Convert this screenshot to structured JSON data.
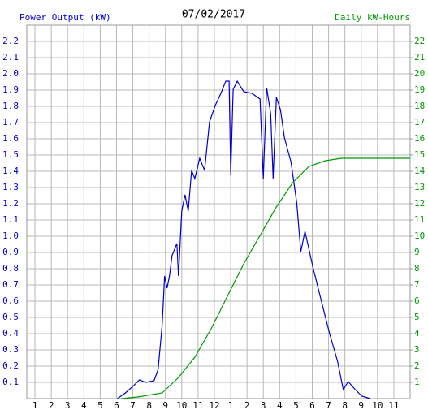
{
  "chart_data": {
    "type": "line",
    "title": "07/02/2017",
    "xlim": [
      0.5,
      24
    ],
    "xticks": [
      1,
      2,
      3,
      4,
      5,
      6,
      7,
      8,
      9,
      10,
      11,
      12,
      {
        "value": 13,
        "label": "1"
      },
      {
        "value": 14,
        "label": "2"
      },
      {
        "value": 15,
        "label": "3"
      },
      {
        "value": 16,
        "label": "4"
      },
      {
        "value": 17,
        "label": "5"
      },
      {
        "value": 18,
        "label": "6"
      },
      {
        "value": 19,
        "label": "7"
      },
      {
        "value": 20,
        "label": "8"
      },
      {
        "value": 21,
        "label": "9"
      },
      {
        "value": 22,
        "label": "10"
      },
      {
        "value": 23,
        "label": "11"
      }
    ],
    "ylim": [
      0,
      2.3
    ],
    "yticks": [
      0.1,
      0.2,
      0.3,
      0.4,
      0.5,
      0.6,
      0.7,
      0.8,
      0.9,
      {
        "value": 1,
        "label": "1.0"
      },
      1.1,
      1.2,
      1.3,
      1.4,
      1.5,
      1.6,
      1.7,
      1.8,
      1.9,
      {
        "value": 2,
        "label": "2.0"
      },
      2.1,
      2.2
    ],
    "y2lim": [
      0,
      23
    ],
    "y2ticks": [
      1,
      2,
      3,
      4,
      5,
      6,
      7,
      8,
      9,
      10,
      11,
      12,
      13,
      14,
      15,
      16,
      17,
      18,
      19,
      20,
      21,
      22
    ],
    "grid": true,
    "series": [
      {
        "name": "Power Output (kW)",
        "color": "#0000cc",
        "axis": "y",
        "x": [
          6.05,
          6.55,
          7.05,
          7.4,
          7.8,
          8.3,
          8.55,
          8.8,
          8.95,
          9.1,
          9.25,
          9.4,
          9.7,
          9.8,
          10.0,
          10.2,
          10.4,
          10.6,
          10.8,
          11.1,
          11.4,
          11.7,
          12.05,
          12.4,
          12.7,
          12.9,
          13.0,
          13.15,
          13.4,
          13.8,
          14.3,
          14.8,
          15.0,
          15.2,
          15.45,
          15.6,
          15.8,
          16.05,
          16.3,
          16.7,
          17.05,
          17.3,
          17.55,
          18.05,
          18.55,
          19.05,
          19.55,
          19.9,
          20.2,
          20.55,
          21.05,
          21.55
        ],
        "values": [
          0,
          0.035,
          0.08,
          0.115,
          0.1,
          0.11,
          0.18,
          0.455,
          0.755,
          0.68,
          0.755,
          0.88,
          0.955,
          0.755,
          1.155,
          1.255,
          1.155,
          1.405,
          1.355,
          1.48,
          1.405,
          1.705,
          1.805,
          1.88,
          1.955,
          1.955,
          1.38,
          1.905,
          1.955,
          1.89,
          1.88,
          1.845,
          1.355,
          1.915,
          1.755,
          1.355,
          1.855,
          1.78,
          1.605,
          1.455,
          1.205,
          0.905,
          1.03,
          0.805,
          0.605,
          0.405,
          0.23,
          0.055,
          0.105,
          0.065,
          0.015,
          0
        ]
      },
      {
        "name": "Daily kW-Hours",
        "color": "#009900",
        "axis": "y2",
        "x": [
          6.3,
          7.3,
          8.8,
          9.8,
          10.8,
          11.8,
          12.8,
          13.8,
          14.8,
          15.8,
          16.8,
          17.8,
          18.8,
          19.8,
          24
        ],
        "values": [
          0,
          0.1,
          0.35,
          1.3,
          2.55,
          4.3,
          6.3,
          8.3,
          10.05,
          11.8,
          13.3,
          14.3,
          14.65,
          14.8,
          14.8
        ]
      }
    ]
  }
}
